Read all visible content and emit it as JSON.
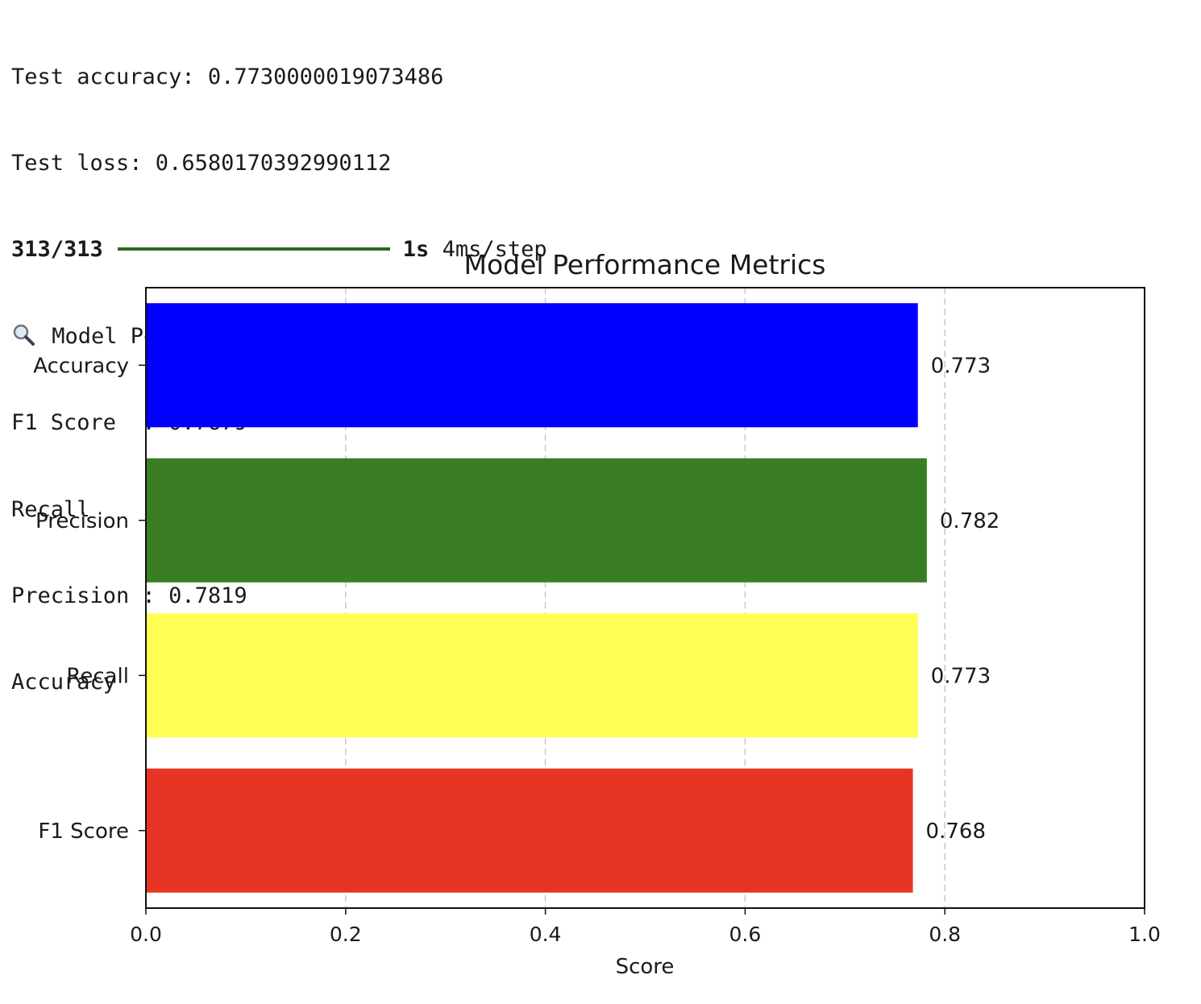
{
  "console": {
    "test_accuracy": "Test accuracy: 0.7730000019073486",
    "test_loss": "Test loss: 0.6580170392990112",
    "progress": {
      "steps": "313/313",
      "fraction": 1.0,
      "time": "1s",
      "per_step": " 4ms/step"
    },
    "metrics_header_icon": "magnifying-glass-icon",
    "metrics_header": " Model Performance Metrics:",
    "metric_lines": [
      "F1 Score  : 0.7679",
      "Recall    : 0.7730",
      "Precision : 0.7819",
      "Accuracy  : 0.7730"
    ]
  },
  "chart_data": {
    "type": "bar",
    "orientation": "horizontal",
    "title": "Model Performance Metrics",
    "xlabel": "Score",
    "ylabel": "",
    "categories": [
      "Accuracy",
      "Precision",
      "Recall",
      "F1 Score"
    ],
    "values": [
      0.773,
      0.782,
      0.773,
      0.768
    ],
    "value_labels": [
      "0.773",
      "0.782",
      "0.773",
      "0.768"
    ],
    "colors": [
      "#0000fe",
      "#3a7e23",
      "#fefe54",
      "#e83424"
    ],
    "xlim": [
      0.0,
      1.0
    ],
    "xticks": [
      0.0,
      0.2,
      0.4,
      0.6,
      0.8,
      1.0
    ],
    "xtick_labels": [
      "0.0",
      "0.2",
      "0.4",
      "0.6",
      "0.8",
      "1.0"
    ],
    "grid": "x-dashed",
    "legend": "none"
  }
}
